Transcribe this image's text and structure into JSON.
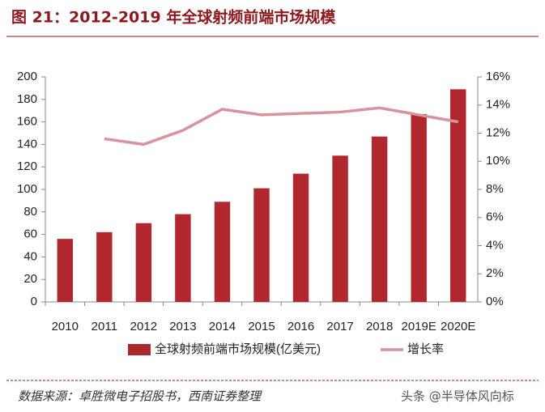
{
  "chart_data": {
    "type": "bar_line",
    "title": "图 21：2012-2019 年全球射频前端市场规模",
    "source": "数据来源：卓胜微电子招股书，西南证券整理",
    "watermark": "头条 @半导体风向标",
    "categories": [
      "2010",
      "2011",
      "2012",
      "2013",
      "2014",
      "2015",
      "2016",
      "2017",
      "2018",
      "2019E",
      "2020E"
    ],
    "series": [
      {
        "name": "全球射频前端市场规模(亿美元)",
        "color": "#b0282d",
        "type": "bar",
        "values": [
          56,
          62,
          70,
          78,
          89,
          101,
          114,
          130,
          147,
          167,
          189
        ]
      },
      {
        "name": "增长率",
        "color": "#d8949c",
        "type": "line",
        "axis": "y2",
        "values": [
          null,
          11.6,
          11.2,
          12.2,
          13.7,
          13.3,
          13.4,
          13.5,
          13.8,
          13.3,
          12.8
        ]
      }
    ],
    "ylim": [
      0,
      200
    ],
    "yticks": [
      0,
      20,
      40,
      60,
      80,
      100,
      120,
      140,
      160,
      180,
      200
    ],
    "y2lim": [
      0,
      16
    ],
    "y2ticks": [
      {
        "value": 0,
        "label": "0%"
      },
      {
        "value": 2,
        "label": "2%"
      },
      {
        "value": 4,
        "label": "4%"
      },
      {
        "value": 6,
        "label": "6%"
      },
      {
        "value": 8,
        "label": "8%"
      },
      {
        "value": 10,
        "label": "10%"
      },
      {
        "value": 12,
        "label": "12%"
      },
      {
        "value": 14,
        "label": "14%"
      },
      {
        "value": 16,
        "label": "16%"
      }
    ]
  }
}
